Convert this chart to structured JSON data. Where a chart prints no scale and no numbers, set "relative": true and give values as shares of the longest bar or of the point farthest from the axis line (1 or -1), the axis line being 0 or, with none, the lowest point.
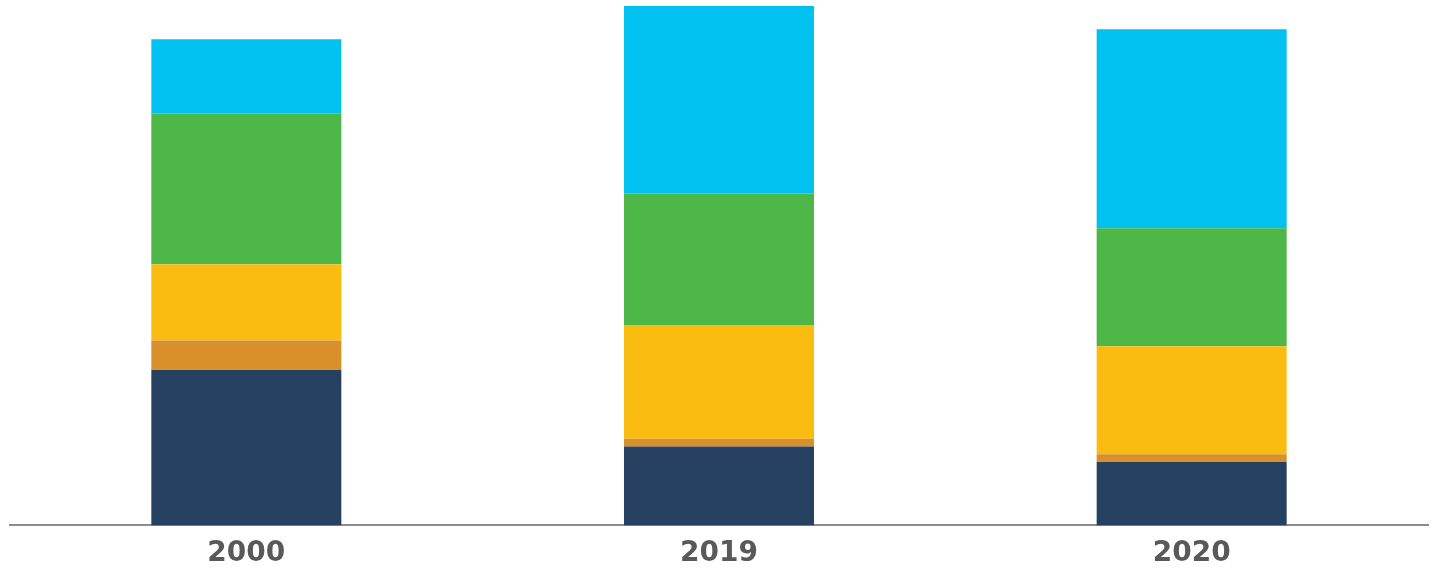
{
  "chart_data": {
    "type": "bar",
    "stacked": true,
    "relative": true,
    "legend": false,
    "categories": [
      "2000",
      "2019",
      "2020"
    ],
    "series": [
      {
        "color": "#264061",
        "values": [
          0.299,
          0.152,
          0.122
        ]
      },
      {
        "color": "#d9902a",
        "values": [
          0.057,
          0.015,
          0.015
        ]
      },
      {
        "color": "#fbbc12",
        "values": [
          0.147,
          0.219,
          0.208
        ]
      },
      {
        "color": "#4db748",
        "values": [
          0.29,
          0.253,
          0.227
        ]
      },
      {
        "color": "#00c1f0",
        "values": [
          0.143,
          0.361,
          0.383
        ]
      }
    ]
  }
}
